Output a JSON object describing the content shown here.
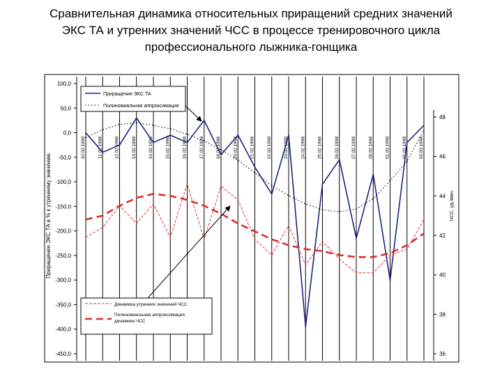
{
  "title_lines": [
    "Сравнительная динамика относительных приращений средних значений",
    "ЭКС ТА и утренних значений ЧСС в процессе тренировочного цикла",
    "профессионального лыжника-гонщика"
  ],
  "chart_data": {
    "type": "line",
    "ylabel_left": "Приращение ЭКС ТА в % к утреннему значению",
    "ylabel_right": "ЧСС, уд./мин.",
    "y_left_ticks": [
      "100,0",
      "50,0",
      "0,0",
      "-50,0",
      "-100,0",
      "-150,0",
      "-200,0",
      "-250,0",
      "-300,0",
      "-350,0",
      "-400,0",
      "-450,0"
    ],
    "y_right_ticks": [
      "48",
      "46",
      "44",
      "42",
      "40",
      "38",
      "36"
    ],
    "ylim_left": [
      -450,
      100
    ],
    "ylim_right": [
      36,
      48
    ],
    "x_labels": [
      "10.02.1998",
      "11.02.1998",
      "12.02.1998",
      "13.02.1998",
      "14.02.1998",
      "15.02.1998",
      "16.02.1998",
      "17.02.1998",
      "18.02.1998",
      "20.02.1998",
      "21.02.1998",
      "22.02.1998",
      "23.02.1998",
      "24.02.1998",
      "25.02.1998",
      "26.02.1998",
      "27.02.1998",
      "28.02.1998",
      "01.03.1998",
      "02.03.1998",
      "03.03.1998"
    ],
    "series": [
      {
        "name": "Приращение ЭКС ТА",
        "axis": "left",
        "style": "solid",
        "color": "#1a237e",
        "values": [
          0,
          -40,
          -25,
          30,
          -20,
          -5,
          -20,
          25,
          -45,
          -5,
          -70,
          -125,
          -5,
          -395,
          -105,
          -55,
          -215,
          -85,
          -300,
          -20,
          15
        ]
      },
      {
        "name": "Полиномиальная аппроксимация",
        "axis": "left",
        "style": "dotted",
        "color": "#000000",
        "values": [
          -10,
          6,
          17,
          20,
          15,
          8,
          -3,
          -17,
          -35,
          -56,
          -82,
          -108,
          -128,
          -145,
          -157,
          -161,
          -155,
          -135,
          -98,
          -58,
          5
        ]
      },
      {
        "name": "Динамика утренних значений ЧСС",
        "axis": "right",
        "style": "thin-dashed",
        "color": "#e53935",
        "values": [
          41.9,
          42.4,
          43.5,
          42.6,
          43.6,
          41.9,
          44.6,
          41.8,
          44.5,
          43.8,
          41.8,
          41.0,
          42.5,
          40.5,
          41.7,
          40.8,
          40.1,
          40.1,
          41.0,
          41.3,
          42.8
        ]
      },
      {
        "name": "Полиномиальная аппроксимация динамики ЧСС",
        "axis": "right",
        "style": "thick-dashed",
        "color": "#d32f2f",
        "values": [
          42.8,
          43.0,
          43.5,
          43.9,
          44.1,
          44.0,
          43.8,
          43.5,
          43.1,
          42.6,
          42.2,
          41.8,
          41.5,
          41.3,
          41.2,
          41.0,
          40.9,
          40.9,
          41.1,
          41.5,
          42.1
        ]
      }
    ],
    "legend_top": [
      "Приращение ЭКС ТА",
      "Полиномиальная аппроксимация"
    ],
    "legend_bottom": [
      "Динамика утренних значений ЧСС",
      "Полиномиальная аппроксимация динамики ЧСС"
    ],
    "legend_placement": "top-left and bottom-left",
    "grid": true
  }
}
